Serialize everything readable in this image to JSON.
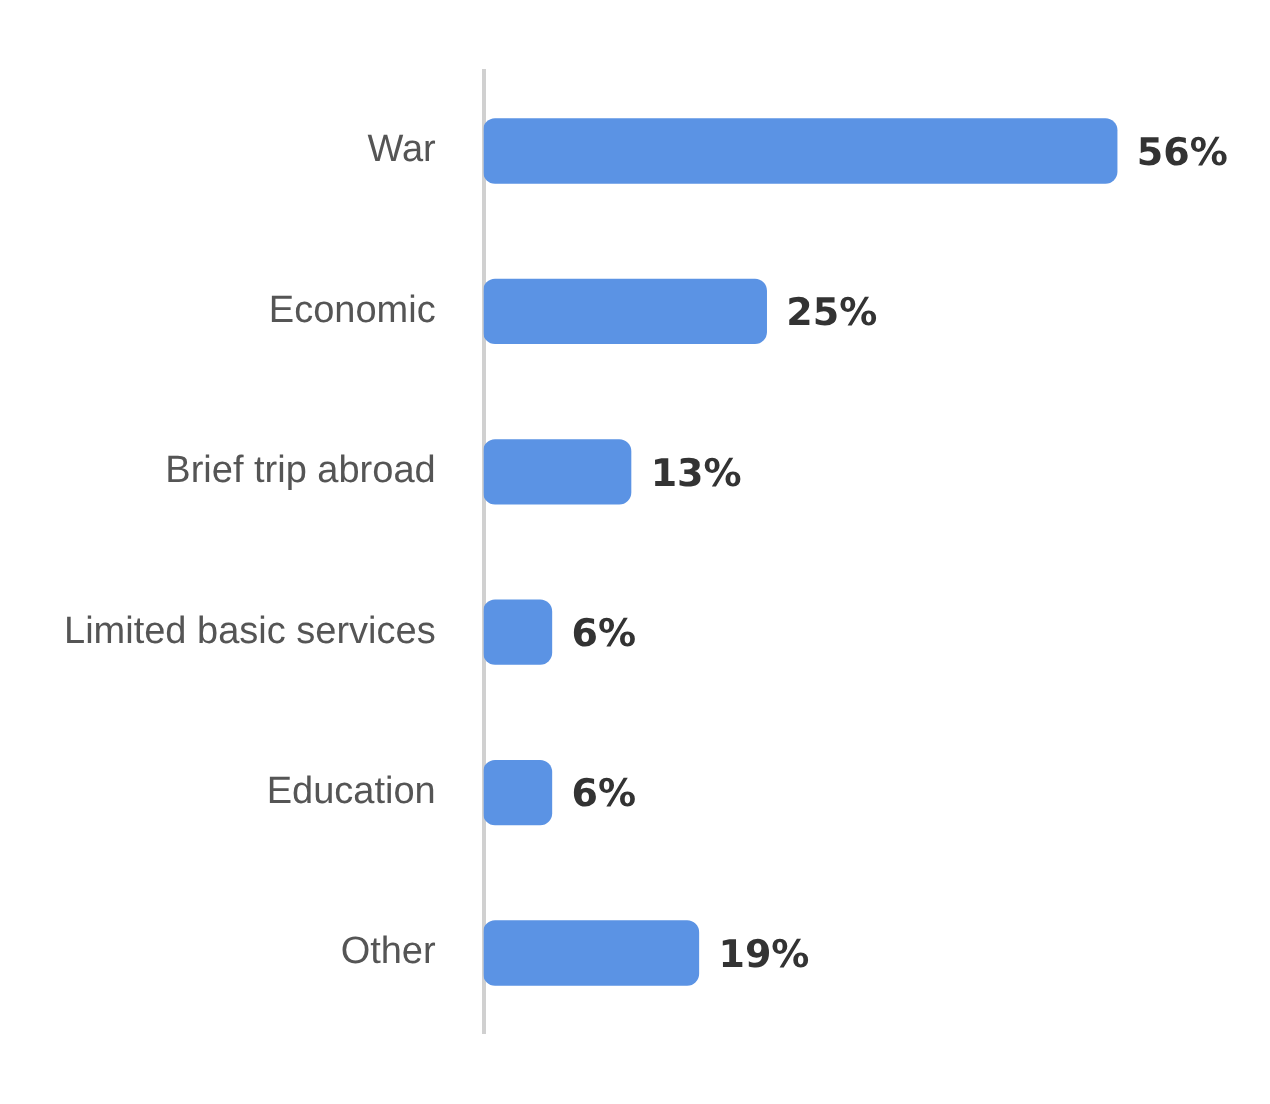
{
  "chart_data": {
    "type": "bar",
    "orientation": "horizontal",
    "categories": [
      "War",
      "Economic",
      "Brief trip abroad",
      "Limited basic services",
      "Education",
      "Other"
    ],
    "values": [
      56,
      25,
      13,
      6,
      6,
      19
    ],
    "value_labels": [
      "56%",
      "25%",
      "13%",
      "6%",
      "6%",
      "19%"
    ],
    "color": "#5b93e4",
    "tick_labels": "y"
  }
}
